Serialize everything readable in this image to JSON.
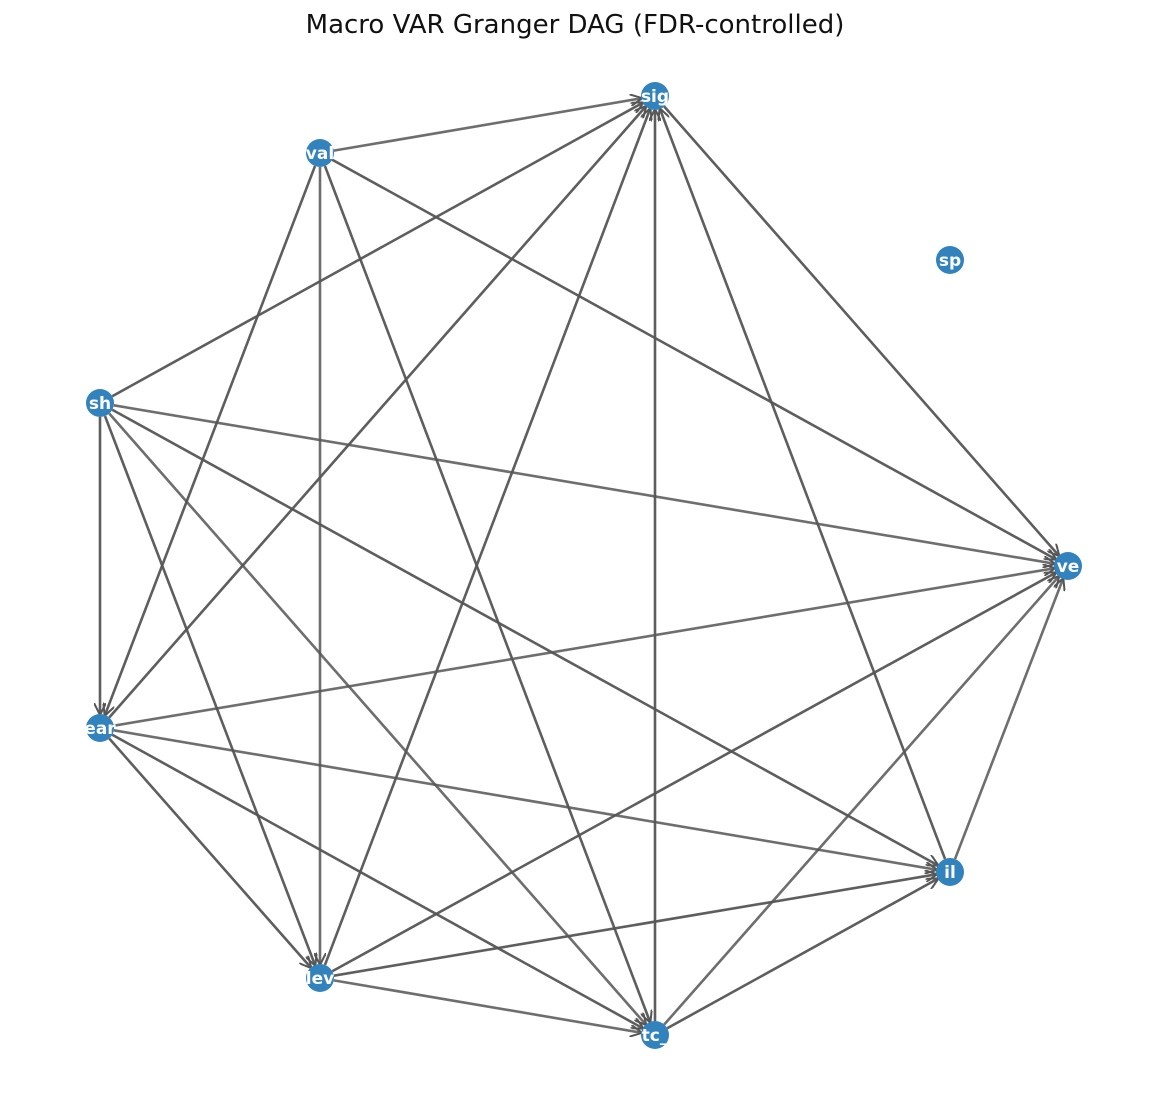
{
  "title": "Macro VAR Granger DAG (FDR-controlled)",
  "colors": {
    "node": "#3182bd",
    "edge": "#555555",
    "label": "#ffffff"
  },
  "nodes": [
    {
      "id": "sig",
      "label": "sig"
    },
    {
      "id": "val",
      "label": "val"
    },
    {
      "id": "sh",
      "label": "sh"
    },
    {
      "id": "ear",
      "label": "ear"
    },
    {
      "id": "lev",
      "label": "lev"
    },
    {
      "id": "tc",
      "label": "tc_"
    },
    {
      "id": "il",
      "label": "il"
    },
    {
      "id": "ve",
      "label": "ve"
    },
    {
      "id": "sp",
      "label": "sp"
    }
  ],
  "edges": [
    {
      "source": "val",
      "target": "sig"
    },
    {
      "source": "val",
      "target": "ve"
    },
    {
      "source": "val",
      "target": "ear"
    },
    {
      "source": "val",
      "target": "lev"
    },
    {
      "source": "val",
      "target": "tc"
    },
    {
      "source": "sh",
      "target": "sig"
    },
    {
      "source": "sh",
      "target": "ve"
    },
    {
      "source": "sh",
      "target": "ear"
    },
    {
      "source": "sh",
      "target": "lev"
    },
    {
      "source": "sh",
      "target": "tc"
    },
    {
      "source": "sh",
      "target": "il"
    },
    {
      "source": "ear",
      "target": "sig"
    },
    {
      "source": "ear",
      "target": "ve"
    },
    {
      "source": "ear",
      "target": "lev"
    },
    {
      "source": "ear",
      "target": "tc"
    },
    {
      "source": "ear",
      "target": "il"
    },
    {
      "source": "lev",
      "target": "sig"
    },
    {
      "source": "lev",
      "target": "ve"
    },
    {
      "source": "lev",
      "target": "tc"
    },
    {
      "source": "lev",
      "target": "il"
    },
    {
      "source": "tc",
      "target": "sig"
    },
    {
      "source": "tc",
      "target": "ve"
    },
    {
      "source": "tc",
      "target": "il"
    },
    {
      "source": "il",
      "target": "sig"
    },
    {
      "source": "il",
      "target": "ve"
    },
    {
      "source": "sig",
      "target": "ve"
    }
  ]
}
